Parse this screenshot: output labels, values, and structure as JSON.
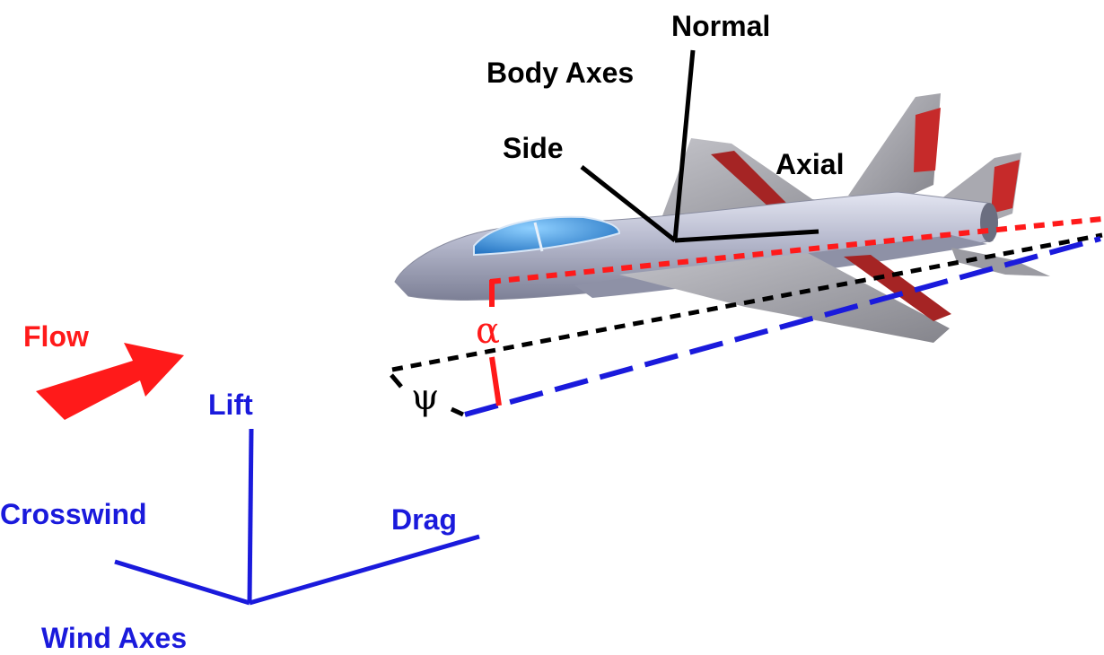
{
  "labels": {
    "normal": "Normal",
    "body_axes": "Body Axes",
    "side": "Side",
    "axial": "Axial",
    "flow": "Flow",
    "alpha": "α",
    "psi": "ψ",
    "lift": "Lift",
    "crosswind": "Crosswind",
    "drag": "Drag",
    "wind_axes": "Wind Axes"
  },
  "colors": {
    "body_axis_lines": "#000000",
    "wind_axis_lines": "#1a1adc",
    "flow_arrow": "#ff1a1a",
    "alpha_marker": "#ff1a1a",
    "fuselage": "#b4b8cc",
    "wing": "#9a9aa2",
    "canopy": "#3a8fd6",
    "control_surface": "#a52424"
  }
}
